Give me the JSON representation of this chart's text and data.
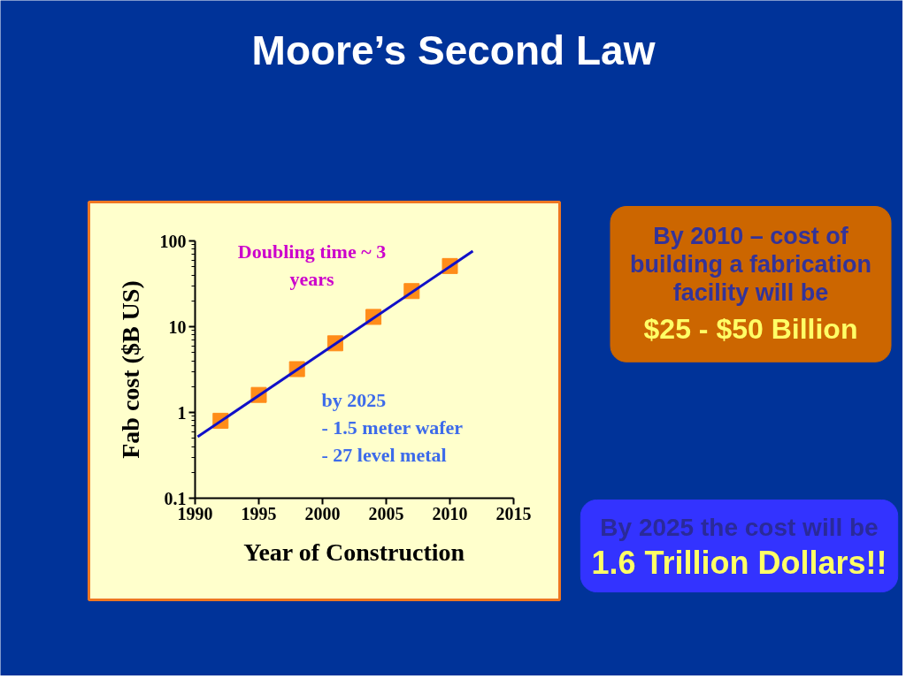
{
  "chart_data": {
    "type": "scatter",
    "title": "Moore’s Second Law",
    "xlabel": "Year of Construction",
    "ylabel": "Fab cost ($B US)",
    "x": [
      1992,
      1995,
      1998,
      2001,
      2004,
      2007,
      2010
    ],
    "series": [
      {
        "color": "#ff8c19",
        "marker": "square",
        "values": [
          0.8,
          1.6,
          3.2,
          6.4,
          13,
          26,
          51
        ]
      },
      {
        "type": "line",
        "color": "#1010c8",
        "x": [
          1990.2,
          2011.8
        ],
        "values": [
          0.52,
          76
        ]
      }
    ],
    "log": "y",
    "grid": false,
    "xlim": [
      1990,
      2015
    ],
    "xticks": [
      1990,
      1995,
      2000,
      2005,
      2010,
      2015
    ],
    "ylim": [
      0.1,
      100
    ],
    "yticks": [
      0.1,
      1,
      10,
      100
    ],
    "annotations": [
      "Doubling time ~ 3\nyears",
      "by 2025\n- 1.5 meter wafer\n- 27 level metal",
      "By 2010 – cost of\nbuilding a fabrication\nfacility will be\n$25 - $50 Billion",
      "By 2025 the cost will be\n1.6 Trillion Dollars!!"
    ]
  }
}
